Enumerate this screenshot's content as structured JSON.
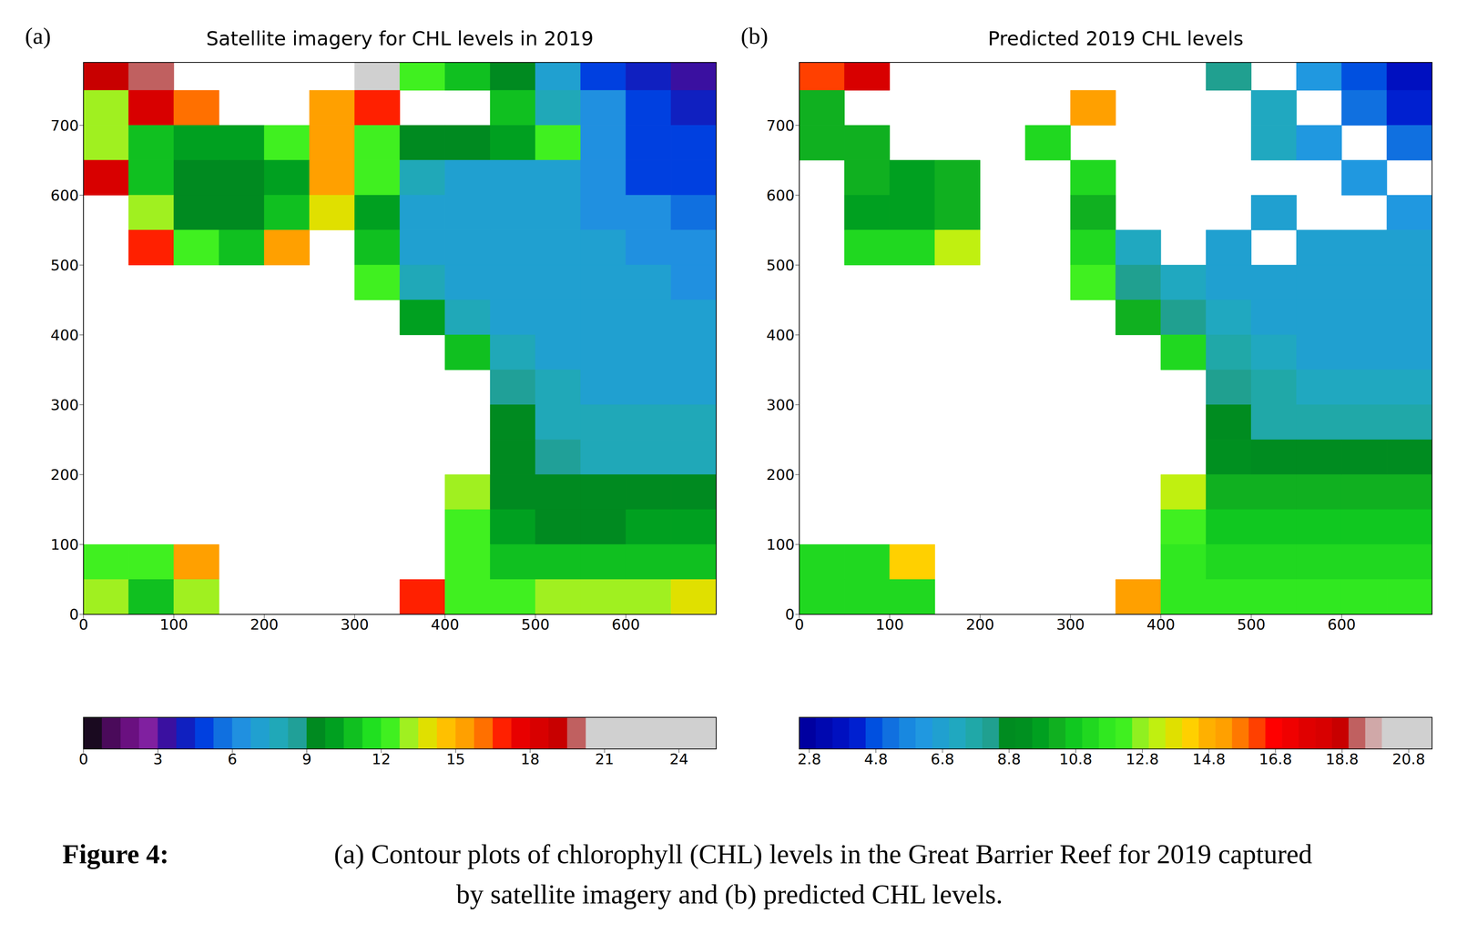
{
  "chart_data": [
    {
      "type": "heatmap",
      "label": "(a)",
      "title": "Satellite imagery for CHL levels in 2019",
      "xlim": [
        0,
        700
      ],
      "xticks": [
        0,
        100,
        200,
        300,
        400,
        500,
        600
      ],
      "ylim": [
        0,
        790
      ],
      "yticks": [
        0,
        100,
        200,
        300,
        400,
        500,
        600,
        700
      ],
      "x_edges": [
        0,
        50,
        100,
        150,
        200,
        250,
        300,
        350,
        400,
        450,
        500,
        550,
        600,
        650,
        700
      ],
      "y_edges": [
        0,
        50,
        100,
        150,
        200,
        250,
        300,
        350,
        400,
        450,
        500,
        550,
        600,
        650,
        700,
        750,
        800
      ],
      "cells": [
        [
          19,
          20,
          null,
          null,
          null,
          null,
          21,
          12,
          11,
          9,
          7,
          5,
          4,
          3.5
        ],
        [
          13,
          18,
          16,
          null,
          null,
          15,
          17,
          null,
          null,
          11,
          8,
          6,
          5,
          4
        ],
        [
          13,
          11,
          10,
          10,
          12,
          15,
          12,
          9,
          9,
          10,
          12,
          6,
          5,
          4.5
        ],
        [
          18,
          11,
          9.5,
          9.5,
          10,
          15,
          12,
          8,
          7,
          7,
          7,
          6,
          5,
          5
        ],
        [
          null,
          13,
          9.5,
          9.5,
          11,
          14,
          10,
          7,
          7,
          7,
          7,
          6,
          6,
          5.5
        ],
        [
          null,
          17,
          12,
          11,
          15,
          null,
          11,
          7,
          7,
          7,
          7,
          7,
          6,
          6
        ],
        [
          null,
          null,
          null,
          null,
          null,
          null,
          12,
          8,
          7,
          7,
          7,
          7,
          7,
          6.5
        ],
        [
          null,
          null,
          null,
          null,
          null,
          null,
          null,
          10,
          8,
          7,
          7,
          7,
          7,
          7
        ],
        [
          null,
          null,
          null,
          null,
          null,
          null,
          null,
          null,
          11,
          8,
          7,
          7,
          7,
          7
        ],
        [
          null,
          null,
          null,
          null,
          null,
          null,
          null,
          null,
          null,
          8.5,
          7.5,
          7,
          7,
          7
        ],
        [
          null,
          null,
          null,
          null,
          null,
          null,
          null,
          null,
          null,
          9,
          8,
          7.5,
          7.5,
          7.5
        ],
        [
          null,
          null,
          null,
          null,
          null,
          null,
          null,
          null,
          null,
          9.5,
          8.5,
          8,
          8,
          8
        ],
        [
          null,
          null,
          null,
          null,
          null,
          null,
          null,
          null,
          13,
          9.5,
          9,
          9,
          9,
          9
        ],
        [
          null,
          null,
          null,
          null,
          null,
          null,
          null,
          null,
          12,
          10,
          9.5,
          9.5,
          10,
          10
        ],
        [
          12,
          12,
          15,
          null,
          null,
          null,
          null,
          null,
          12,
          11,
          10.5,
          11,
          11,
          11
        ],
        [
          13,
          11,
          13,
          null,
          null,
          null,
          null,
          17,
          12,
          12,
          13,
          13,
          13,
          14
        ]
      ],
      "colorbar": {
        "range": [
          0,
          25.5
        ],
        "ticks": [
          0,
          3,
          6,
          9,
          12,
          15,
          18,
          21,
          24
        ],
        "colors": [
          "#1a0a20",
          "#4a0a5a",
          "#6a1080",
          "#8020a0",
          "#3a10a0",
          "#1020c0",
          "#0040e0",
          "#1070e0",
          "#2090e0",
          "#20a0d0",
          "#20a8b8",
          "#20a098",
          "#008a20",
          "#00a020",
          "#10c020",
          "#20e020",
          "#40f020",
          "#a0f020",
          "#e0e000",
          "#ffc000",
          "#ffa000",
          "#ff7000",
          "#ff2000",
          "#e80000",
          "#d80000",
          "#c80000",
          "#c06060",
          "#d0d0d0",
          "#d0d0d0",
          "#d0d0d0",
          "#d0d0d0",
          "#d0d0d0",
          "#d0d0d0",
          "#d0d0d0"
        ]
      }
    },
    {
      "type": "heatmap",
      "label": "(b)",
      "title": "Predicted 2019 CHL levels",
      "xlim": [
        0,
        700
      ],
      "xticks": [
        0,
        100,
        200,
        300,
        400,
        500,
        600
      ],
      "ylim": [
        0,
        790
      ],
      "yticks": [
        0,
        100,
        200,
        300,
        400,
        500,
        600,
        700
      ],
      "x_edges": [
        0,
        50,
        100,
        150,
        200,
        250,
        300,
        350,
        400,
        450,
        500,
        550,
        600,
        650,
        700
      ],
      "y_edges": [
        0,
        50,
        100,
        150,
        200,
        250,
        300,
        350,
        400,
        450,
        500,
        550,
        600,
        650,
        700,
        750,
        800
      ],
      "cells": [
        [
          16,
          18,
          null,
          null,
          null,
          null,
          null,
          null,
          null,
          8,
          null,
          6,
          4.5,
          3.5
        ],
        [
          10,
          null,
          null,
          null,
          null,
          null,
          15,
          null,
          null,
          null,
          7,
          null,
          5,
          4
        ],
        [
          10,
          10,
          null,
          null,
          null,
          11,
          null,
          null,
          null,
          null,
          7,
          6,
          null,
          5
        ],
        [
          null,
          10,
          9.5,
          10,
          null,
          null,
          11,
          null,
          null,
          null,
          null,
          null,
          6,
          null
        ],
        [
          null,
          9.5,
          9.5,
          10,
          null,
          null,
          10,
          null,
          null,
          null,
          6.5,
          null,
          null,
          6
        ],
        [
          null,
          11,
          11,
          13,
          null,
          null,
          11,
          7,
          null,
          6.5,
          null,
          6.5,
          6.5,
          6.5
        ],
        [
          null,
          null,
          null,
          null,
          null,
          null,
          12,
          8,
          7,
          6.5,
          6.5,
          6.5,
          6.5,
          6.5
        ],
        [
          null,
          null,
          null,
          null,
          null,
          null,
          null,
          10,
          8,
          7,
          6.5,
          6.5,
          6.5,
          6.5
        ],
        [
          null,
          null,
          null,
          null,
          null,
          null,
          null,
          null,
          11,
          7.5,
          7,
          6.5,
          6.5,
          6.5
        ],
        [
          null,
          null,
          null,
          null,
          null,
          null,
          null,
          null,
          null,
          8,
          7.5,
          7,
          7,
          7
        ],
        [
          null,
          null,
          null,
          null,
          null,
          null,
          null,
          null,
          null,
          8.5,
          7.5,
          7.5,
          7.5,
          7.5
        ],
        [
          null,
          null,
          null,
          null,
          null,
          null,
          null,
          null,
          null,
          9,
          8.5,
          8.5,
          8.5,
          8.5
        ],
        [
          null,
          null,
          null,
          null,
          null,
          null,
          null,
          null,
          13,
          10,
          10,
          10,
          10,
          10
        ],
        [
          null,
          null,
          null,
          null,
          null,
          null,
          null,
          null,
          12,
          10.5,
          10.5,
          10.5,
          10.5,
          10.5
        ],
        [
          11,
          11,
          14,
          null,
          null,
          null,
          null,
          null,
          11.5,
          11,
          11,
          11,
          11,
          11
        ],
        [
          11,
          11,
          11,
          null,
          null,
          null,
          null,
          15,
          11.5,
          11.5,
          11.5,
          11.5,
          11.5,
          11.5
        ]
      ],
      "colorbar": {
        "range": [
          2.5,
          21.5
        ],
        "ticks": [
          2.8,
          4.8,
          6.8,
          8.8,
          10.8,
          12.8,
          14.8,
          16.8,
          18.8,
          20.8
        ],
        "colors": [
          "#0000a0",
          "#0008b0",
          "#0010c0",
          "#0020d0",
          "#0050e0",
          "#1070e0",
          "#1888e0",
          "#2098e0",
          "#20a0d0",
          "#20a8c0",
          "#20a8a8",
          "#20a090",
          "#008c20",
          "#009020",
          "#00a020",
          "#10b020",
          "#10c820",
          "#20d820",
          "#30e820",
          "#40f020",
          "#90f020",
          "#c0f010",
          "#e0e000",
          "#ffd000",
          "#ffb000",
          "#ffa000",
          "#ff7800",
          "#ff4000",
          "#ff0000",
          "#f00000",
          "#e00000",
          "#d80000",
          "#c80000",
          "#c06060",
          "#d0a8a8",
          "#d0d0d0",
          "#d0d0d0",
          "#d0d0d0"
        ]
      }
    }
  ],
  "caption": {
    "label": "Figure 4:",
    "lines": [
      "(a) Contour plots of chlorophyll (CHL) levels in the Great Barrier Reef for 2019 captured",
      "by satellite imagery and (b) predicted CHL levels."
    ]
  }
}
